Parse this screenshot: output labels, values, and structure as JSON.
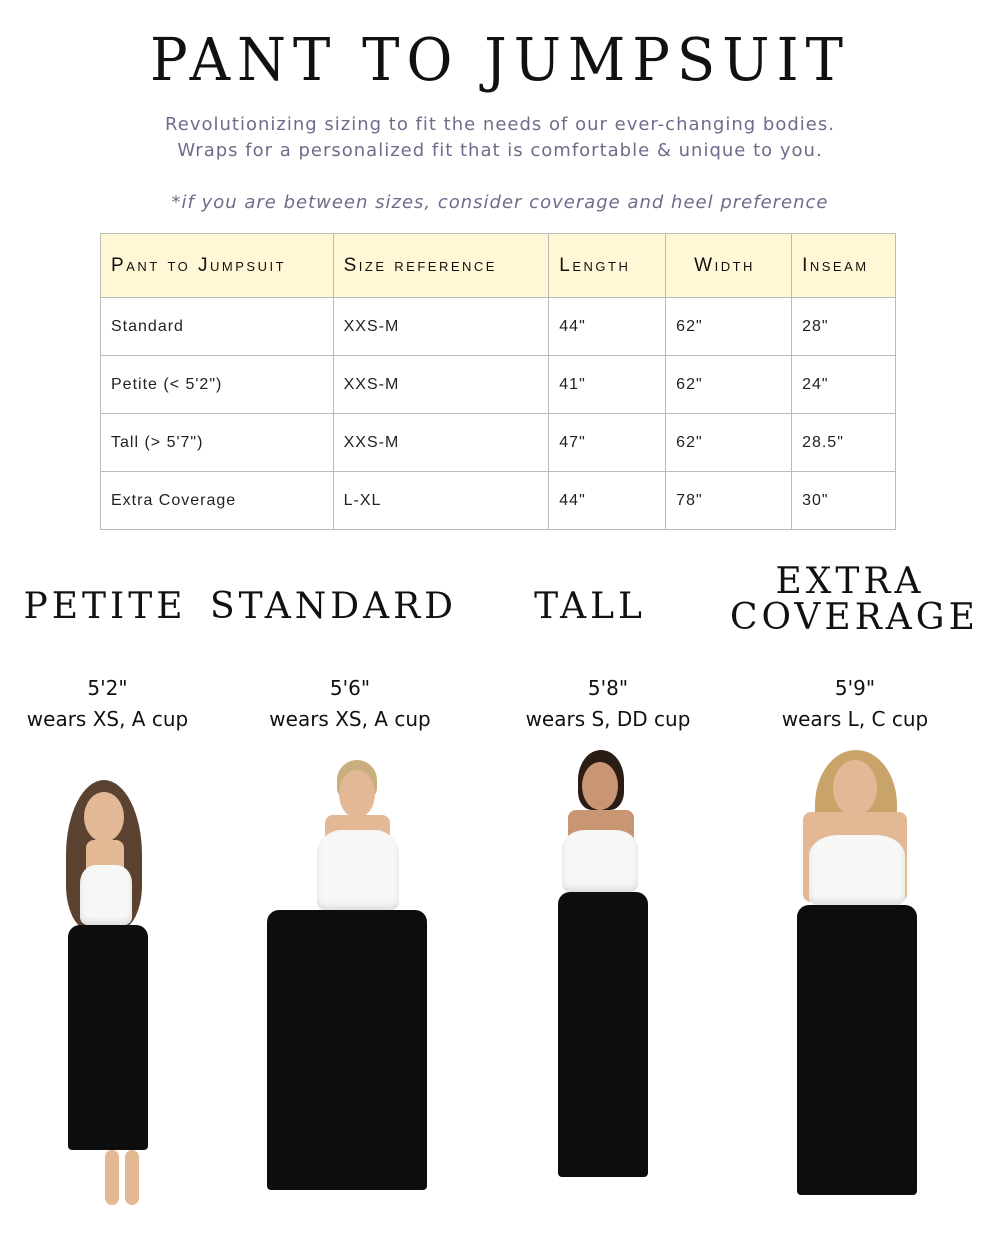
{
  "header": {
    "title": "PANT TO JUMPSUIT",
    "subtitle_line1": "Revolutionizing sizing to fit the needs of our ever-changing bodies.",
    "subtitle_line2": "Wraps for a personalized fit that is comfortable & unique to you.",
    "note": "*if you are between sizes, consider coverage and heel preference"
  },
  "table": {
    "headers": [
      "Pant to Jumpsuit",
      "Size reference",
      "Length",
      "Width",
      "Inseam"
    ],
    "rows": [
      [
        "Standard",
        "XXS-M",
        "44\"",
        "62\"",
        "28\""
      ],
      [
        "Petite (< 5'2\")",
        "XXS-M",
        "41\"",
        "62\"",
        "24\""
      ],
      [
        "Tall (> 5'7\")",
        "XXS-M",
        "47\"",
        "62\"",
        "28.5\""
      ],
      [
        "Extra Coverage",
        "L-XL",
        "44\"",
        "78\"",
        "30\""
      ]
    ]
  },
  "models": [
    {
      "name": "PETITE",
      "height": "5'2\"",
      "wears": "wears XS, A cup"
    },
    {
      "name": "STANDARD",
      "height": "5'6\"",
      "wears": "wears XS, A cup"
    },
    {
      "name": "TALL",
      "height": "5'8\"",
      "wears": "wears S, DD cup"
    },
    {
      "name_line1": "EXTRA",
      "name_line2": "COVERAGE",
      "height": "5'9\"",
      "wears": "wears L, C cup"
    }
  ],
  "colors": {
    "header_bg": "#fff7d6",
    "subtitle": "#6e6c8a"
  }
}
